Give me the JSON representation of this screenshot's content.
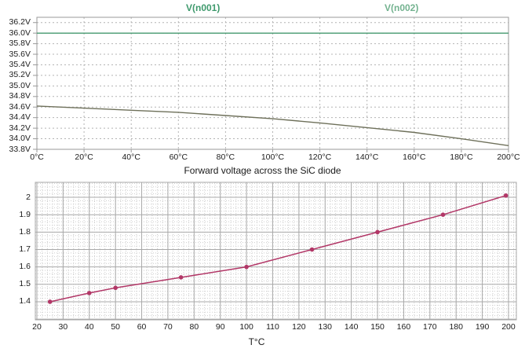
{
  "colors": {
    "background": "#ffffff",
    "axis": "#9a9a9a",
    "grid_dotted_top": "#b4b4b4",
    "grid_major_bottom": "#a9a9a9",
    "grid_minor_bottom": "#cdcdcd",
    "tick_text": "#1c1c1c",
    "legend_vn001": "#3f9a6d",
    "legend_vn002": "#74b390",
    "diode_line": "#b23767"
  },
  "chart_data": [
    {
      "type": "line",
      "title": "",
      "legend_position": "top",
      "grid": "dotted",
      "xlim": [
        0,
        200
      ],
      "ylim": [
        33.8,
        36.3
      ],
      "x": [
        0,
        20,
        40,
        60,
        80,
        100,
        120,
        140,
        160,
        180,
        200
      ],
      "x_tick_labels": [
        "0°C",
        "20°C",
        "40°C",
        "60°C",
        "80°C",
        "100°C",
        "120°C",
        "140°C",
        "160°C",
        "180°C",
        "200°C"
      ],
      "y_ticks": [
        36.2,
        36.0,
        35.8,
        35.6,
        35.4,
        35.2,
        35.0,
        34.8,
        34.6,
        34.4,
        34.2,
        34.0,
        33.8
      ],
      "y_tick_labels": [
        "36.2V",
        "36.0V",
        "35.8V",
        "35.6V",
        "35.4V",
        "35.2V",
        "35.0V",
        "34.8V",
        "34.6V",
        "34.4V",
        "34.2V",
        "34.0V",
        "33.8V"
      ],
      "series": [
        {
          "name": "V(n001)",
          "color": "#449a6f",
          "values": [
            36.0,
            36.0,
            36.0,
            36.0,
            36.0,
            36.0,
            36.0,
            36.0,
            36.0,
            36.0,
            36.0
          ]
        },
        {
          "name": "V(n002)",
          "color": "#6e705a",
          "values": [
            34.62,
            34.58,
            34.54,
            34.5,
            34.44,
            34.38,
            34.3,
            34.21,
            34.12,
            34.0,
            33.87
          ]
        }
      ]
    },
    {
      "type": "line",
      "title": "Forward voltage across the SiC diode",
      "xlabel": "T°C",
      "ylabel": "",
      "grid": "major+minor",
      "color": "#b23767",
      "marker": "circle",
      "xlim": [
        19.4,
        203
      ],
      "ylim": [
        1.296,
        2.086
      ],
      "x_ticks": [
        20,
        30,
        40,
        50,
        60,
        70,
        80,
        90,
        100,
        110,
        120,
        130,
        140,
        150,
        160,
        170,
        180,
        190,
        200
      ],
      "y_ticks": [
        2.0,
        1.9,
        1.8,
        1.7,
        1.6,
        1.5,
        1.4
      ],
      "y_tick_labels": [
        "2",
        "1.9",
        "1.8",
        "1.7",
        "1.6",
        "1.5",
        "1.4"
      ],
      "minor_x_step": 2,
      "minor_y_step": 0.02,
      "points": [
        [
          25,
          1.4
        ],
        [
          40,
          1.45
        ],
        [
          50,
          1.48
        ],
        [
          75,
          1.54
        ],
        [
          100,
          1.6
        ],
        [
          125,
          1.7
        ],
        [
          150,
          1.8
        ],
        [
          175,
          1.9
        ],
        [
          199,
          2.01
        ]
      ]
    }
  ]
}
